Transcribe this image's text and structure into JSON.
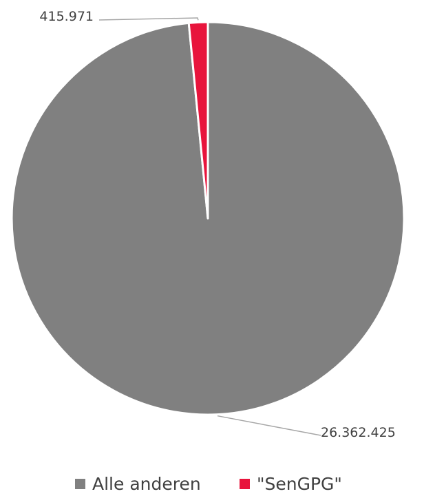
{
  "chart_data": {
    "type": "pie",
    "title": "",
    "slices": [
      {
        "name": "Alle anderen",
        "value": 26362425,
        "label": "26.362.425",
        "color": "#808080"
      },
      {
        "name": "\"SenGPG\"",
        "value": 415971,
        "label": "415.971",
        "color": "#e8143c"
      }
    ],
    "start_angle_deg": 0,
    "direction": "clockwise",
    "slice_border_color": "#ffffff",
    "leader_line_color": "#a6a6a6",
    "legend_position": "bottom"
  }
}
